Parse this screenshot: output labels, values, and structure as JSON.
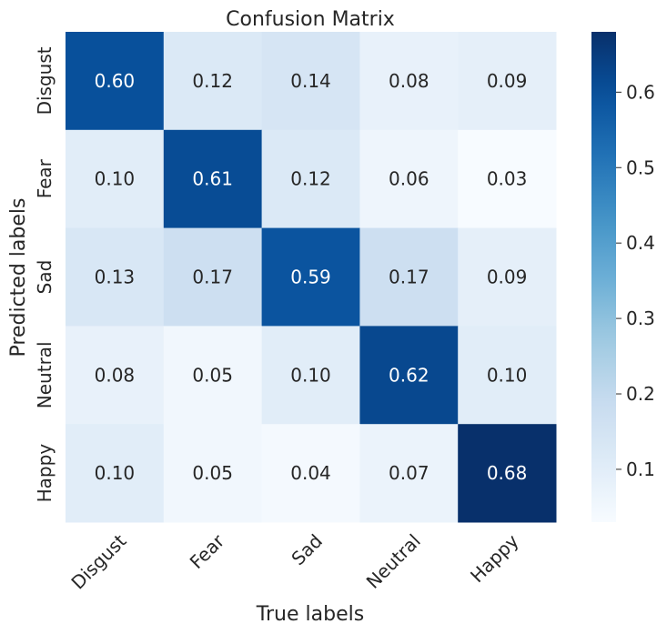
{
  "chart_data": {
    "type": "heatmap",
    "title": "Confusion Matrix",
    "xlabel": "True labels",
    "ylabel": "Predicted labels",
    "x_categories": [
      "Disgust",
      "Fear",
      "Sad",
      "Neutral",
      "Happy"
    ],
    "y_categories": [
      "Disgust",
      "Fear",
      "Sad",
      "Neutral",
      "Happy"
    ],
    "values": [
      [
        0.6,
        0.12,
        0.14,
        0.08,
        0.09
      ],
      [
        0.1,
        0.61,
        0.12,
        0.06,
        0.03
      ],
      [
        0.13,
        0.17,
        0.59,
        0.17,
        0.09
      ],
      [
        0.08,
        0.05,
        0.1,
        0.62,
        0.1
      ],
      [
        0.1,
        0.05,
        0.04,
        0.07,
        0.68
      ]
    ],
    "value_labels": [
      [
        "0.60",
        "0.12",
        "0.14",
        "0.08",
        "0.09"
      ],
      [
        "0.10",
        "0.61",
        "0.12",
        "0.06",
        "0.03"
      ],
      [
        "0.13",
        "0.17",
        "0.59",
        "0.17",
        "0.09"
      ],
      [
        "0.08",
        "0.05",
        "0.10",
        "0.62",
        "0.10"
      ],
      [
        "0.10",
        "0.05",
        "0.04",
        "0.07",
        "0.68"
      ]
    ],
    "colormap": "Blues",
    "color_range": [
      0.03,
      0.68
    ],
    "colorbar": {
      "ticks": [
        0.1,
        0.2,
        0.3,
        0.4,
        0.5,
        0.6
      ],
      "tick_labels": [
        "0.1",
        "0.2",
        "0.3",
        "0.4",
        "0.5",
        "0.6"
      ],
      "position": "right"
    },
    "grid": false,
    "legend": "none"
  }
}
